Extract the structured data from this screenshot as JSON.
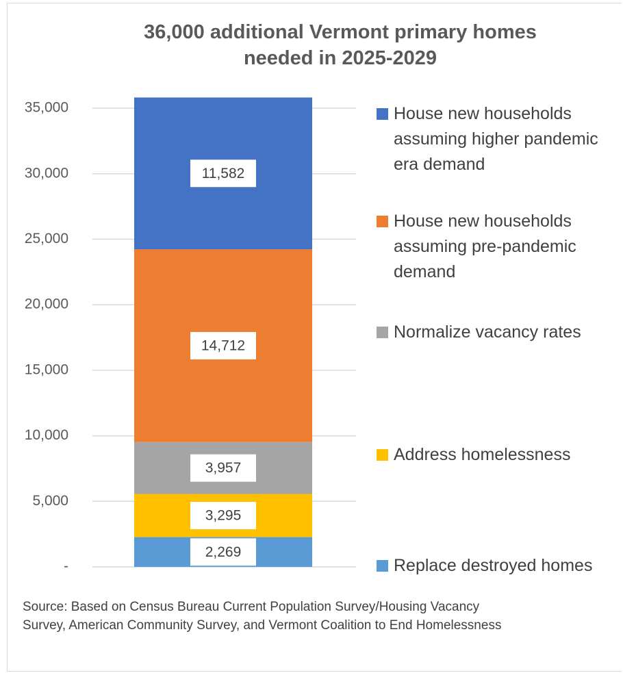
{
  "chart_data": {
    "type": "stacked_bar",
    "title": "36,000 additional Vermont primary homes needed in 2025-2029",
    "categories": [
      null
    ],
    "series": [
      {
        "name": "Replace destroyed homes",
        "color": "#5b9bd5",
        "values": [
          2269
        ],
        "value_labels": [
          "2,269"
        ]
      },
      {
        "name": "Address homelessness",
        "color": "#ffc000",
        "values": [
          3295
        ],
        "value_labels": [
          "3,295"
        ]
      },
      {
        "name": "Normalize vacancy rates",
        "color": "#a5a5a5",
        "values": [
          3957
        ],
        "value_labels": [
          "3,957"
        ]
      },
      {
        "name": "House new households assuming pre-pandemic demand",
        "color": "#ed7d31",
        "values": [
          14712
        ],
        "value_labels": [
          "14,712"
        ]
      },
      {
        "name": "House new households assuming higher pandemic era demand",
        "color": "#4472c4",
        "values": [
          11582
        ],
        "value_labels": [
          "11,582"
        ]
      }
    ],
    "ylim": [
      0,
      36000
    ],
    "yticks": [
      {
        "value": 0,
        "label": "-"
      },
      {
        "value": 5000,
        "label": "5,000"
      },
      {
        "value": 10000,
        "label": "10,000"
      },
      {
        "value": 15000,
        "label": "15,000"
      },
      {
        "value": 20000,
        "label": "20,000"
      },
      {
        "value": 25000,
        "label": "25,000"
      },
      {
        "value": 30000,
        "label": "30,000"
      },
      {
        "value": 35000,
        "label": "35,000"
      }
    ],
    "grid": true,
    "source": "Source: Based on Census Bureau Current Population Survey/Housing Vacancy Survey, American Community Survey, and Vermont Coalition to End Homelessness"
  }
}
